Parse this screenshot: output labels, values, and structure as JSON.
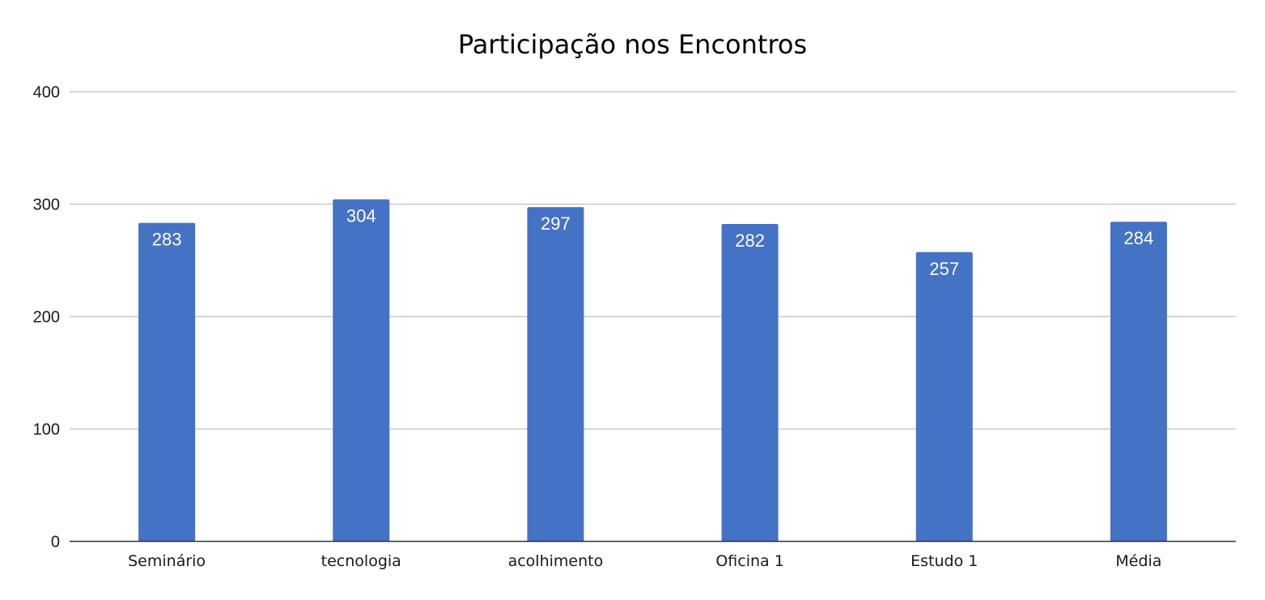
{
  "chart_data": {
    "type": "bar",
    "title": "Participação nos Encontros",
    "xlabel": "",
    "ylabel": "",
    "categories": [
      "Seminário",
      "tecnologia",
      "acolhimento",
      "Oficina 1",
      "Estudo 1",
      "Média"
    ],
    "values": [
      283,
      304,
      297,
      282,
      257,
      284
    ],
    "data_labels": [
      "283",
      "304",
      "297",
      "282",
      "257",
      "284"
    ],
    "ylim": [
      0,
      400
    ],
    "yticks": [
      0,
      100,
      200,
      300,
      400
    ],
    "ytick_labels": [
      "0",
      "100",
      "200",
      "300",
      "400"
    ],
    "grid": true,
    "legend": "none",
    "bar_color": "#4472c4",
    "grid_color": "#c8c8c8",
    "axis_color": "#333333"
  }
}
